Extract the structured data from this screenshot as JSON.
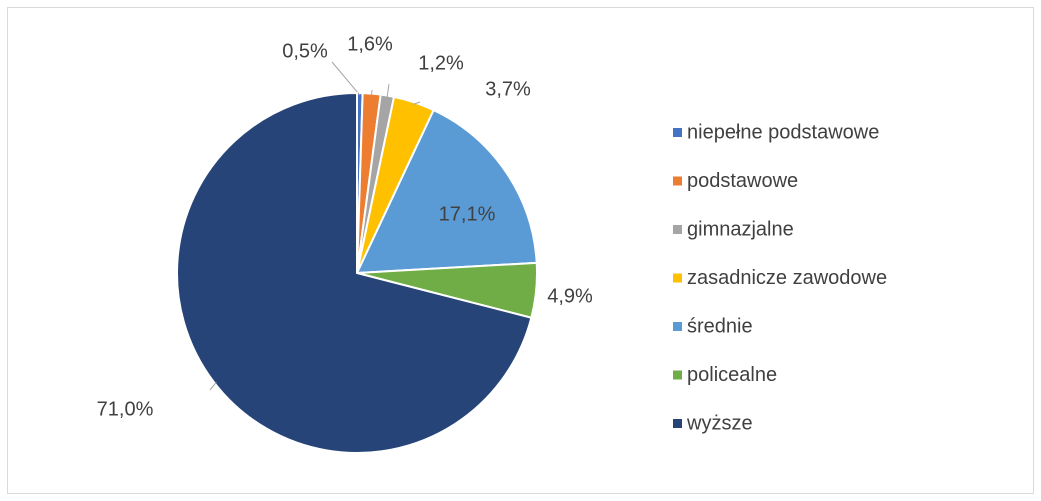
{
  "chart_data": {
    "type": "pie",
    "categories": [
      "niepełne podstawowe",
      "podstawowe",
      "gimnazjalne",
      "zasadnicze zawodowe",
      "średnie",
      "policealne",
      "wyższe"
    ],
    "values": [
      0.5,
      1.6,
      1.2,
      3.7,
      17.1,
      4.9,
      71.0
    ],
    "value_labels": [
      "0,5%",
      "1,6%",
      "1,2%",
      "3,7%",
      "17,1%",
      "4,9%",
      "71,0%"
    ],
    "colors": [
      "#4472c4",
      "#ed7d31",
      "#a5a5a5",
      "#ffc000",
      "#5b9bd5",
      "#70ad47",
      "#264478"
    ],
    "legend": "right"
  }
}
